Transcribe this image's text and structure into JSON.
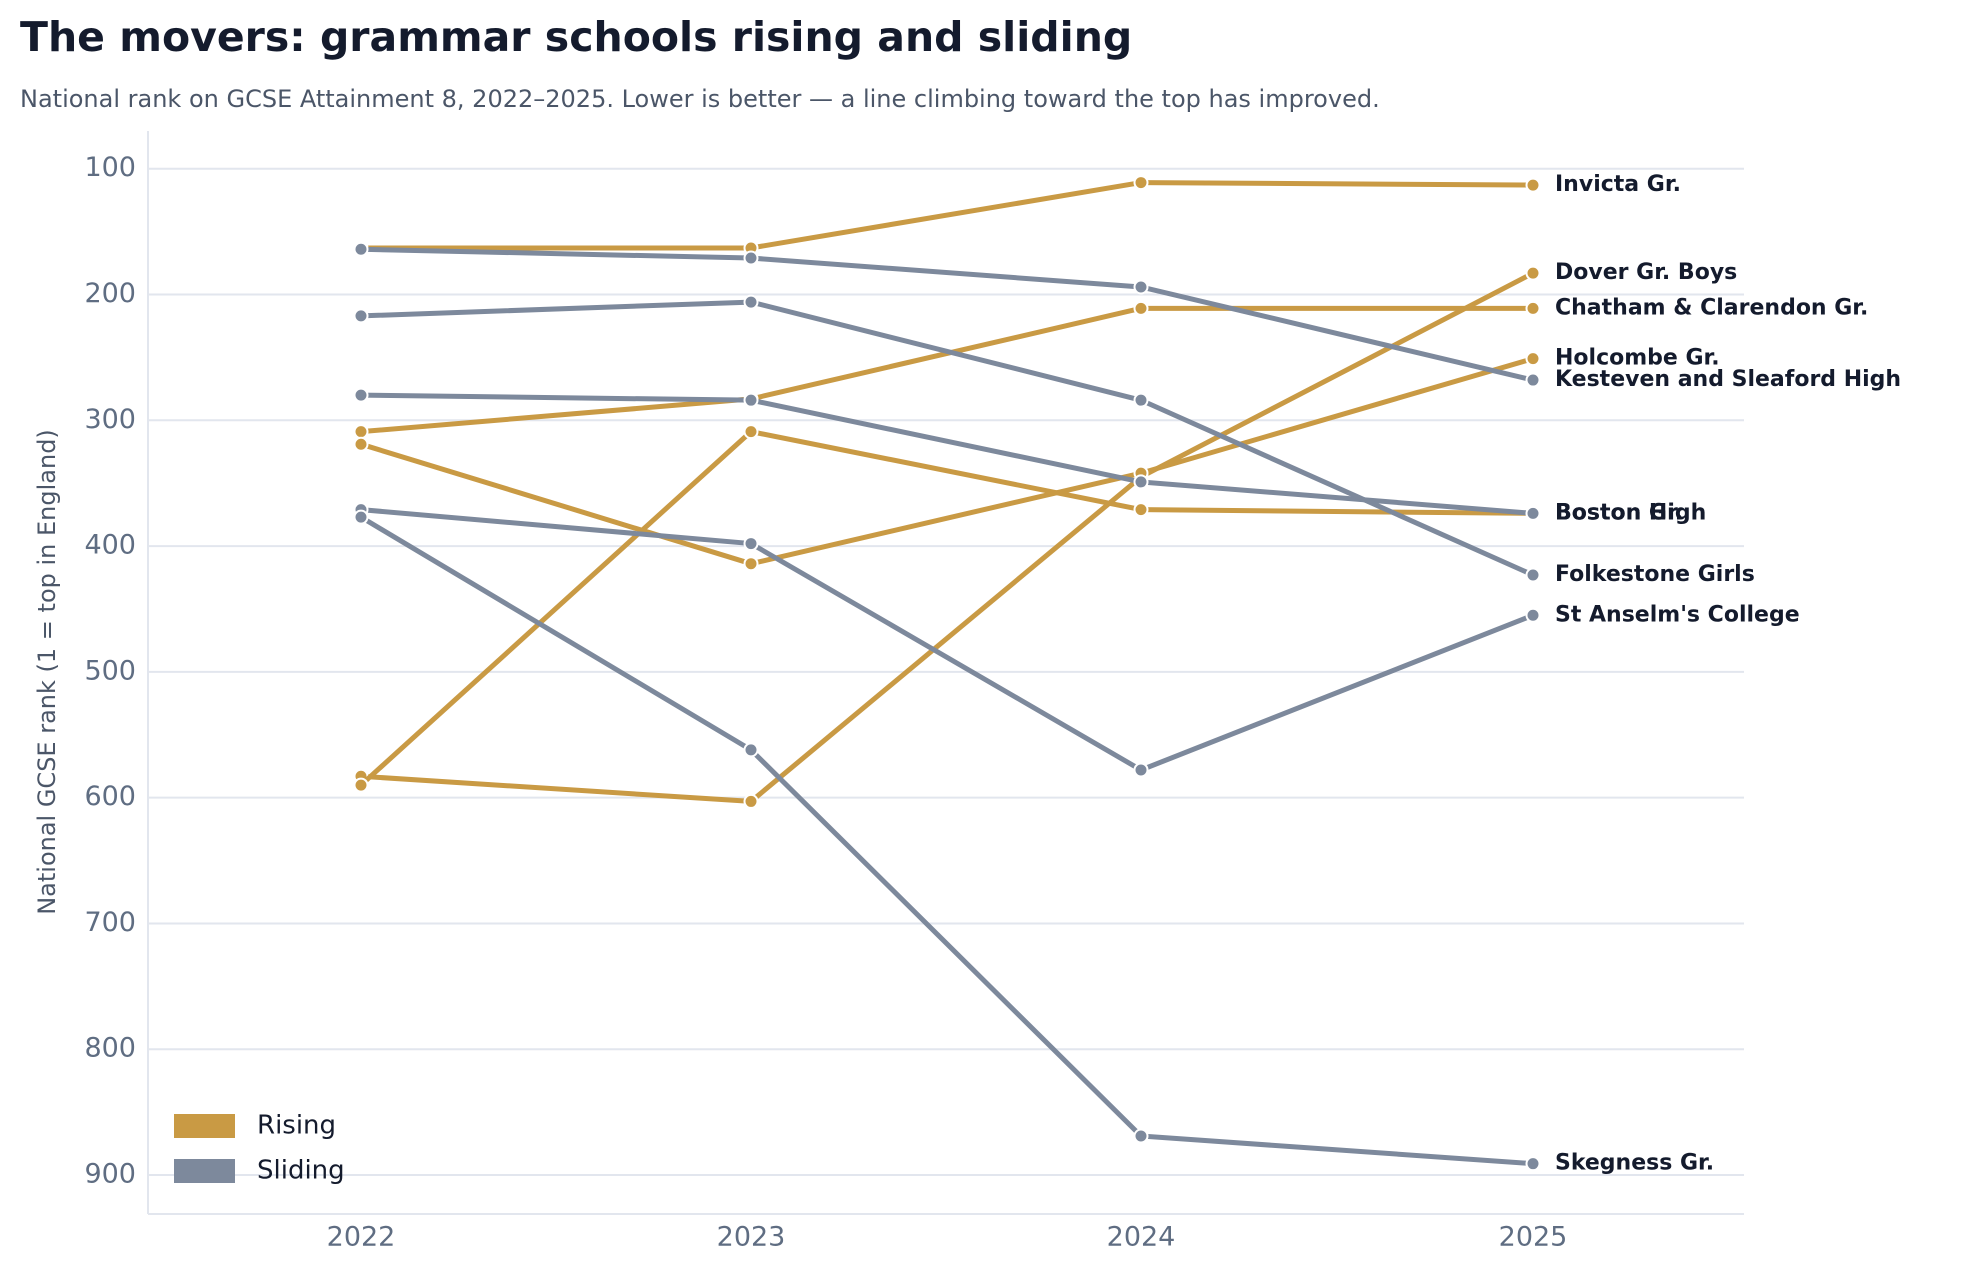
{
  "chart_data": {
    "type": "line",
    "title": "The movers: grammar schools rising and sliding",
    "subtitle": "National rank on GCSE Attainment 8, 2022–2025. Lower is better — a line climbing toward the top has improved.",
    "y_label": "National GCSE rank  (1 = top in England)",
    "categories": [
      "2022",
      "2023",
      "2024",
      "2025"
    ],
    "ylim": [
      70,
      931
    ],
    "y_inverted": true,
    "yticks": [
      100,
      200,
      300,
      400,
      500,
      600,
      700,
      800,
      900
    ],
    "grid": true,
    "legend_position": "lower left",
    "legend": [
      {
        "name": "Rising",
        "color": "#c99a44"
      },
      {
        "name": "Sliding",
        "color": "#7d899c"
      }
    ],
    "series": [
      {
        "name": "Invicta Gr.",
        "group": 0,
        "values": [
          163,
          163,
          111,
          113
        ]
      },
      {
        "name": "Dover Gr. Boys",
        "group": 0,
        "values": [
          583,
          603,
          345,
          183
        ]
      },
      {
        "name": "Chatham & Clarendon Gr.",
        "group": 0,
        "values": [
          309,
          283,
          211,
          211
        ]
      },
      {
        "name": "Holcombe Gr.",
        "group": 0,
        "values": [
          319,
          414,
          342,
          251
        ]
      },
      {
        "name": "Boston High",
        "group": 0,
        "values": [
          590,
          309,
          371,
          374
        ]
      },
      {
        "name": "Kesteven and Sleaford High",
        "group": 1,
        "values": [
          164,
          171,
          194,
          268
        ]
      },
      {
        "name": "Boston Gr.",
        "group": 1,
        "values": [
          280,
          284,
          349,
          374
        ]
      },
      {
        "name": "Folkestone Girls",
        "group": 1,
        "values": [
          217,
          206,
          284,
          423
        ]
      },
      {
        "name": "St Anselm's College",
        "group": 1,
        "values": [
          371,
          398,
          578,
          455
        ]
      },
      {
        "name": "Skegness Gr.",
        "group": 1,
        "values": [
          377,
          562,
          869,
          891
        ]
      }
    ]
  }
}
